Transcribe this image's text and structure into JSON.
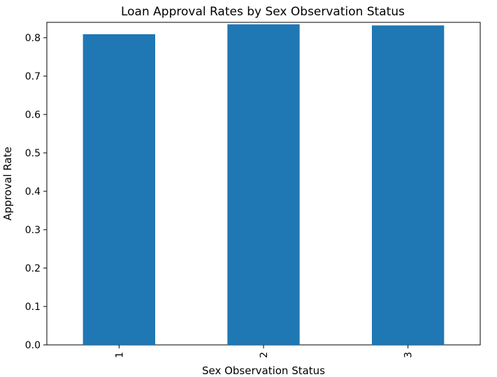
{
  "chart_data": {
    "type": "bar",
    "title": "Loan Approval Rates by Sex Observation Status",
    "xlabel": "Sex Observation Status",
    "ylabel": "Approval Rate",
    "categories": [
      "1",
      "2",
      "3"
    ],
    "values": [
      0.809,
      0.835,
      0.832
    ],
    "ylim": [
      0,
      0.84
    ],
    "yticks": [
      "0.0",
      "0.1",
      "0.2",
      "0.3",
      "0.4",
      "0.5",
      "0.6",
      "0.7",
      "0.8"
    ],
    "ytick_values": [
      0,
      0.1,
      0.2,
      0.3,
      0.4,
      0.5,
      0.6,
      0.7,
      0.8
    ],
    "bar_color": "#1f77b4",
    "grid": false,
    "x_tick_rotation": "vertical"
  }
}
